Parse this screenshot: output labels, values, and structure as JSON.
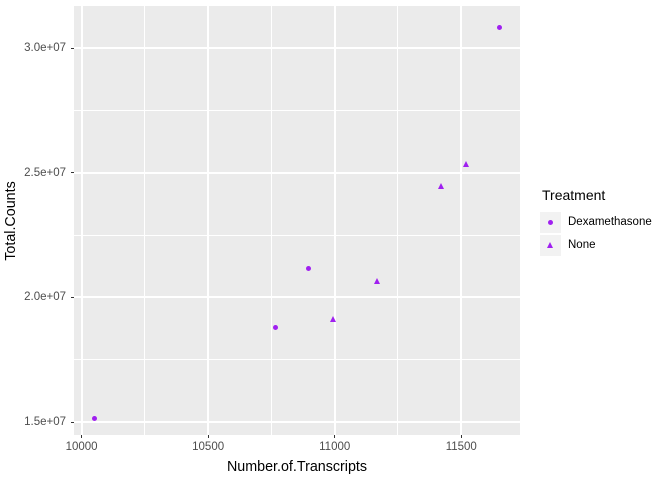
{
  "chart_data": {
    "type": "scatter",
    "title": "",
    "xlabel": "Number.of.Transcripts",
    "ylabel": "Total.Counts",
    "legend_title": "Treatment",
    "legend_position": "right",
    "grid": true,
    "xlim": [
      9970,
      11732
    ],
    "ylim": [
      14480000,
      31690000
    ],
    "x_ticks": [
      {
        "value": 10000,
        "label": "10000"
      },
      {
        "value": 10500,
        "label": "10500"
      },
      {
        "value": 11000,
        "label": "11000"
      },
      {
        "value": 11500,
        "label": "11500"
      }
    ],
    "y_ticks": [
      {
        "value": 15000000,
        "label": "1.5e+07"
      },
      {
        "value": 20000000,
        "label": "2.0e+07"
      },
      {
        "value": 25000000,
        "label": "2.5e+07"
      },
      {
        "value": 30000000,
        "label": "3.0e+07"
      }
    ],
    "x_minor_ticks": [
      10250,
      10750,
      11250
    ],
    "y_minor_ticks": [
      17500000,
      22500000,
      27500000
    ],
    "series": [
      {
        "name": "Dexamethasone",
        "marker": "circle",
        "points": [
          [
            10050,
            15160000
          ],
          [
            10765,
            18810000
          ],
          [
            10895,
            21160000
          ],
          [
            11650,
            30820000
          ]
        ]
      },
      {
        "name": "None",
        "marker": "triangle",
        "points": [
          [
            10995,
            19130000
          ],
          [
            11170,
            20640000
          ],
          [
            11420,
            24450000
          ],
          [
            11520,
            25350000
          ]
        ]
      }
    ],
    "colors": {
      "point": "#A020F0",
      "panel_background": "#EBEBEB",
      "gridline": "#FFFFFF",
      "legend_key_background": "#F2F2F2",
      "tick_label": "#4D4D4D",
      "tick_mark": "#333333",
      "axis_title": "#000000",
      "figure_background": "#FFFFFF"
    }
  }
}
